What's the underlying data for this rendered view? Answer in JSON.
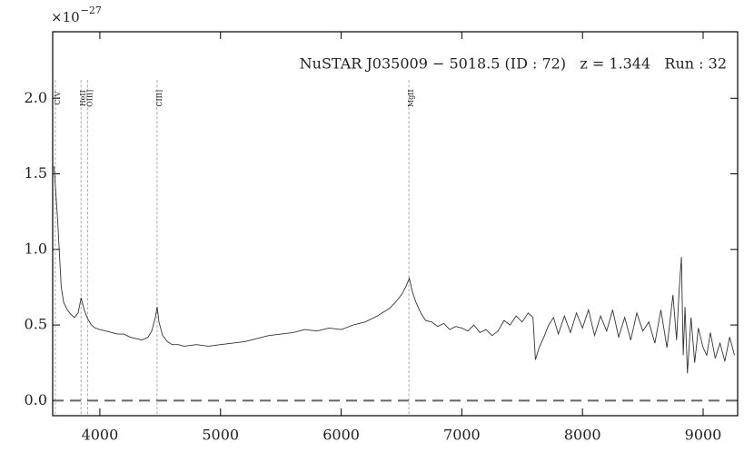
{
  "chart_data": {
    "type": "line",
    "title": "NuSTAR J035009 − 5018.5 (ID : 72)   z = 1.344   Run : 32",
    "y_multiplier": "×10",
    "y_multiplier_exponent": "−27",
    "x": [
      3620,
      3650,
      3680,
      3700,
      3730,
      3760,
      3790,
      3820,
      3845,
      3870,
      3900,
      3930,
      3960,
      4000,
      4050,
      4100,
      4150,
      4200,
      4250,
      4300,
      4350,
      4400,
      4430,
      4460,
      4475,
      4490,
      4520,
      4560,
      4600,
      4650,
      4700,
      4800,
      4900,
      5000,
      5100,
      5200,
      5300,
      5400,
      5500,
      5600,
      5700,
      5800,
      5900,
      6000,
      6100,
      6200,
      6300,
      6400,
      6450,
      6500,
      6540,
      6565,
      6590,
      6620,
      6660,
      6700,
      6750,
      6800,
      6850,
      6900,
      6950,
      7000,
      7050,
      7100,
      7150,
      7200,
      7250,
      7300,
      7350,
      7400,
      7450,
      7500,
      7550,
      7590,
      7610,
      7640,
      7680,
      7720,
      7760,
      7800,
      7850,
      7900,
      7950,
      8000,
      8050,
      8100,
      8150,
      8200,
      8250,
      8300,
      8350,
      8400,
      8450,
      8500,
      8550,
      8600,
      8650,
      8700,
      8750,
      8780,
      8800,
      8820,
      8835,
      8850,
      8870,
      8900,
      8930,
      8960,
      9000,
      9030,
      9060,
      9100,
      9140,
      9180,
      9220,
      9260
    ],
    "values": [
      1.55,
      1.2,
      0.75,
      0.65,
      0.6,
      0.57,
      0.55,
      0.58,
      0.68,
      0.6,
      0.54,
      0.5,
      0.48,
      0.47,
      0.46,
      0.45,
      0.44,
      0.44,
      0.42,
      0.41,
      0.4,
      0.42,
      0.46,
      0.55,
      0.62,
      0.52,
      0.43,
      0.39,
      0.37,
      0.37,
      0.36,
      0.37,
      0.36,
      0.37,
      0.38,
      0.39,
      0.41,
      0.43,
      0.44,
      0.45,
      0.47,
      0.46,
      0.48,
      0.47,
      0.5,
      0.52,
      0.56,
      0.61,
      0.65,
      0.7,
      0.76,
      0.81,
      0.72,
      0.65,
      0.58,
      0.53,
      0.52,
      0.49,
      0.51,
      0.47,
      0.49,
      0.48,
      0.46,
      0.5,
      0.45,
      0.47,
      0.43,
      0.46,
      0.53,
      0.5,
      0.56,
      0.52,
      0.58,
      0.55,
      0.27,
      0.35,
      0.42,
      0.5,
      0.55,
      0.44,
      0.56,
      0.45,
      0.58,
      0.48,
      0.6,
      0.43,
      0.56,
      0.46,
      0.6,
      0.42,
      0.55,
      0.4,
      0.58,
      0.46,
      0.52,
      0.38,
      0.6,
      0.35,
      0.7,
      0.4,
      0.72,
      0.95,
      0.3,
      0.62,
      0.18,
      0.55,
      0.25,
      0.48,
      0.35,
      0.3,
      0.45,
      0.28,
      0.38,
      0.26,
      0.42,
      0.3
    ],
    "color": "#333333",
    "xlim": [
      3609,
      9286
    ],
    "ylim": [
      -0.1,
      2.44
    ],
    "xticks": [
      4000,
      5000,
      6000,
      7000,
      8000,
      9000
    ],
    "yticks": [
      {
        "value": 0,
        "label": "0.0"
      },
      0.5,
      {
        "value": 1,
        "label": "1.0"
      },
      1.5,
      {
        "value": 2,
        "label": "2.0"
      }
    ],
    "hline": 0,
    "lines": [
      {
        "label": "CIV",
        "x": 3631
      },
      {
        "label": "HeII",
        "x": 3844
      },
      {
        "label": "OIII]",
        "x": 3898
      },
      {
        "label": "CIII]",
        "x": 4474
      },
      {
        "label": "MgII",
        "x": 6561
      }
    ]
  }
}
